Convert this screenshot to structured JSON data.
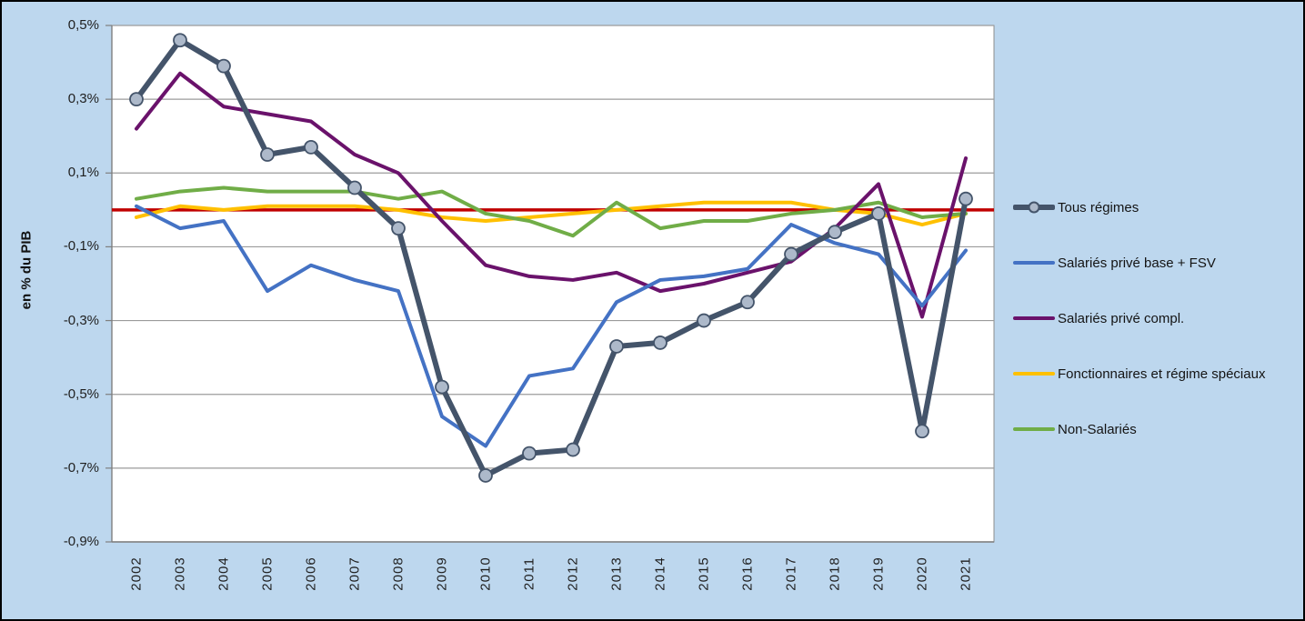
{
  "colors": {
    "background": "#bdd7ee",
    "frame_border": "#000000",
    "plot_background": "#ffffff",
    "plot_border": "#8c8c8c",
    "gridline": "#9b9b9b",
    "axis": "#7f7f7f",
    "text": "#1f1f1f"
  },
  "chart_data": {
    "type": "line",
    "title": "",
    "xlabel": "",
    "ylabel": "en % du PIB",
    "ylim": [
      -0.9,
      0.5
    ],
    "grid": "horizontal",
    "legend_position": "right",
    "x_categories": [
      "2002",
      "2003",
      "2004",
      "2005",
      "2006",
      "2007",
      "2008",
      "2009",
      "2010",
      "2011",
      "2012",
      "2013",
      "2014",
      "2015",
      "2016",
      "2017",
      "2018",
      "2019",
      "2020",
      "2021"
    ],
    "y_ticks": {
      "values": [
        0.5,
        0.3,
        0.1,
        -0.1,
        -0.3,
        -0.5,
        -0.7,
        -0.9
      ],
      "labels": [
        "0,5%",
        "0,3%",
        "0,1%",
        "-0,1%",
        "-0,3%",
        "-0,5%",
        "-0,7%",
        "-0,9%"
      ]
    },
    "reference_line": {
      "value": 0,
      "color": "#c00000"
    },
    "draw_order": [
      "fonctionnaires-regimes-speciaux",
      "non-salaries",
      "salaries-prive-compl",
      "salaries-prive-base-fsv",
      "tous-regimes"
    ],
    "series": [
      {
        "key": "tous-regimes",
        "name": "Tous régimes",
        "color": "#44546a",
        "width": 6,
        "marker": {
          "shape": "circle",
          "fill": "#adb9ca",
          "radius": 7
        },
        "values": [
          0.3,
          0.46,
          0.39,
          0.15,
          0.17,
          0.06,
          -0.05,
          -0.48,
          -0.72,
          -0.66,
          -0.65,
          -0.37,
          -0.36,
          -0.3,
          -0.25,
          -0.12,
          -0.06,
          -0.01,
          -0.6,
          0.03
        ]
      },
      {
        "key": "salaries-prive-base-fsv",
        "name": "Salariés privé base + FSV",
        "color": "#4472c4",
        "width": 4,
        "values": [
          0.01,
          -0.05,
          -0.03,
          -0.22,
          -0.15,
          -0.19,
          -0.22,
          -0.56,
          -0.64,
          -0.45,
          -0.43,
          -0.25,
          -0.19,
          -0.18,
          -0.16,
          -0.04,
          -0.09,
          -0.12,
          -0.26,
          -0.11
        ]
      },
      {
        "key": "salaries-prive-compl",
        "name": "Salariés privé compl.",
        "color": "#6a126b",
        "width": 4,
        "values": [
          0.22,
          0.37,
          0.28,
          0.26,
          0.24,
          0.15,
          0.1,
          -0.03,
          -0.15,
          -0.18,
          -0.19,
          -0.17,
          -0.22,
          -0.2,
          -0.17,
          -0.14,
          -0.05,
          0.07,
          -0.29,
          0.14
        ]
      },
      {
        "key": "fonctionnaires-regimes-speciaux",
        "name": "Fonctionnaires et régime spéciaux",
        "color": "#ffc000",
        "width": 4,
        "values": [
          -0.02,
          0.01,
          0.0,
          0.01,
          0.01,
          0.01,
          0.0,
          -0.02,
          -0.03,
          -0.02,
          -0.01,
          0.0,
          0.01,
          0.02,
          0.02,
          0.02,
          0.0,
          -0.01,
          -0.04,
          -0.01
        ]
      },
      {
        "key": "non-salaries",
        "name": "Non-Salariés",
        "color": "#70ad47",
        "width": 4,
        "values": [
          0.03,
          0.05,
          0.06,
          0.05,
          0.05,
          0.05,
          0.03,
          0.05,
          -0.01,
          -0.03,
          -0.07,
          0.02,
          -0.05,
          -0.03,
          -0.03,
          -0.01,
          0.0,
          0.02,
          -0.02,
          -0.01
        ]
      }
    ]
  }
}
